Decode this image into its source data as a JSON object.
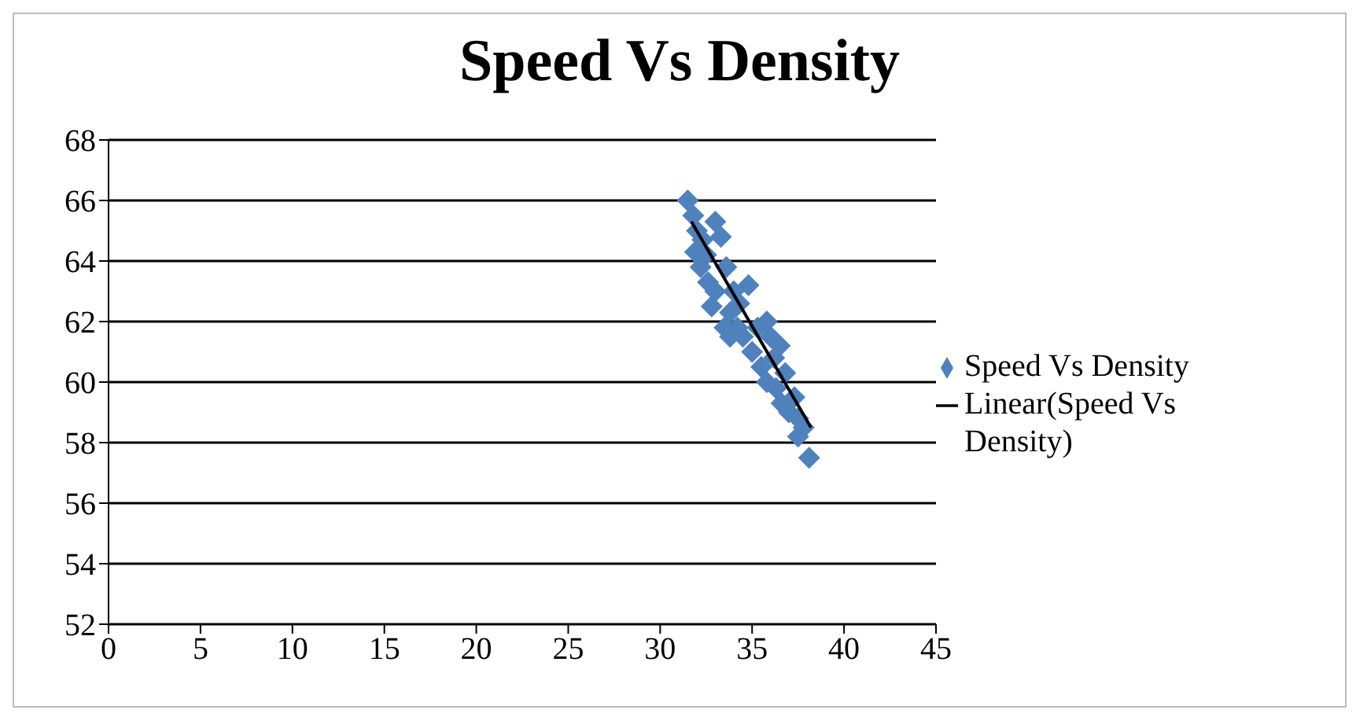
{
  "chart_data": {
    "type": "scatter",
    "title": "Speed Vs Density",
    "xlim": [
      0,
      45
    ],
    "xticks": [
      0,
      5,
      10,
      15,
      20,
      25,
      30,
      35,
      40,
      45
    ],
    "ylim": [
      52,
      68
    ],
    "yticks": [
      52,
      54,
      56,
      58,
      60,
      62,
      64,
      66,
      68
    ],
    "grid": "y",
    "legend": "right",
    "marker": "diamond",
    "series": [
      {
        "name": "Speed Vs Density",
        "color": "#4f81bd",
        "x": [
          31.5,
          31.8,
          32.0,
          32.3,
          31.9,
          32.2,
          32.5,
          33.0,
          33.3,
          32.6,
          33.0,
          32.8,
          33.5,
          33.8,
          34.0,
          34.3,
          34.8,
          33.6,
          34.5,
          35.0,
          35.3,
          35.8,
          36.0,
          35.5,
          36.2,
          36.5,
          35.8,
          36.3,
          36.8,
          36.6,
          37.0,
          37.3,
          37.5,
          37.8,
          37.5,
          38.1,
          34.2,
          33.8
        ],
        "values": [
          66.0,
          65.5,
          65.0,
          64.7,
          64.3,
          63.8,
          64.2,
          65.3,
          64.8,
          63.3,
          63.0,
          62.5,
          61.8,
          62.3,
          63.0,
          62.6,
          63.2,
          63.8,
          61.5,
          61.0,
          61.8,
          62.0,
          61.5,
          60.5,
          60.8,
          61.2,
          60.0,
          59.8,
          60.3,
          59.3,
          59.0,
          59.5,
          58.8,
          58.5,
          58.2,
          57.5,
          61.8,
          61.5
        ]
      },
      {
        "name": "Linear(Speed Vs Density)",
        "color": "#000000",
        "type": "line",
        "marker": "none",
        "x": [
          31.7,
          38.2
        ],
        "values": [
          65.3,
          58.5
        ]
      }
    ]
  }
}
